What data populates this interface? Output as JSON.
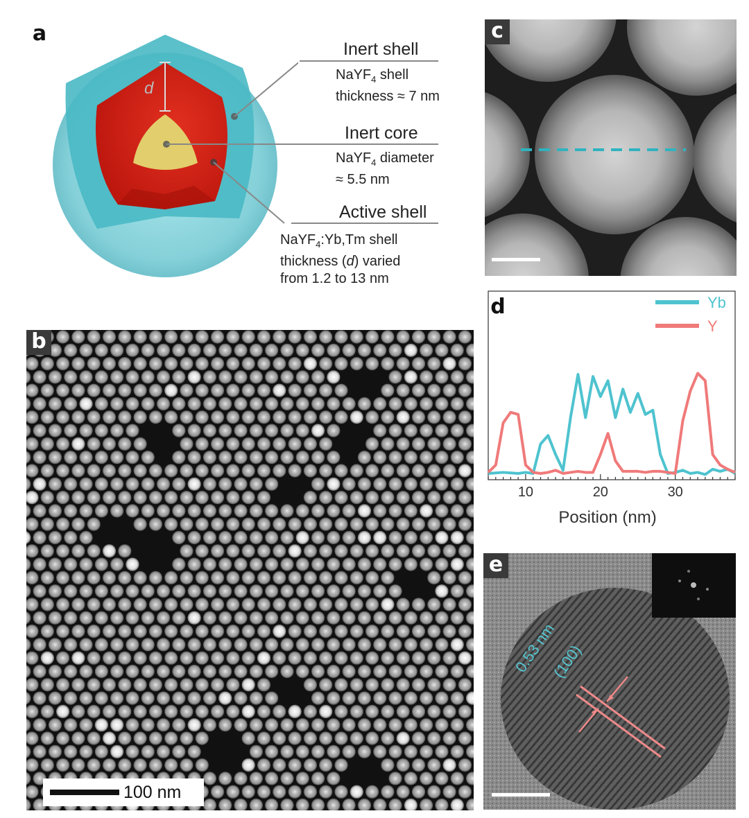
{
  "panels": {
    "a": "a",
    "b": "b",
    "c": "c",
    "d": "d",
    "e": "e"
  },
  "panel_a": {
    "d_symbol": "d",
    "inert_shell": {
      "title": "Inert shell",
      "line1_pre": "NaYF",
      "sub": "4",
      "line1_post": " shell",
      "line2": "thickness ≈ 7 nm"
    },
    "inert_core": {
      "title": "Inert core",
      "line1_pre": "NaYF",
      "sub": "4",
      "line1_post": " diameter",
      "line2": "≈ 5.5 nm"
    },
    "active_shell": {
      "title": "Active shell",
      "line1_pre": "NaYF",
      "sub": "4",
      "line1_post": ":Yb,Tm shell",
      "line2_pre": "thickness (",
      "line2_var": "d",
      "line2_post": ") varied",
      "line3": "from 1.2 to 13 nm"
    }
  },
  "panel_b": {
    "scale_label": "100 nm"
  },
  "panel_e": {
    "spacing_label": "0.53 nm",
    "plane_label": "(100)"
  },
  "colors": {
    "yb": "#4ec3cf",
    "y": "#f07a7a",
    "shell_cyan": "#7fd3dc",
    "active_red": "#cc1c12",
    "core_yellow": "#e0cd6a"
  },
  "chart_data": {
    "type": "line",
    "xlabel": "Position (nm)",
    "ylabel": "",
    "xlim": [
      5,
      38
    ],
    "ylim": [
      0,
      1
    ],
    "xticks": [
      10,
      20,
      30
    ],
    "grid": false,
    "legend": "top-right",
    "series": [
      {
        "name": "Yb",
        "color": "#4ec3cf",
        "x": [
          5,
          7,
          9,
          10,
          11,
          12,
          13,
          14,
          15,
          16,
          17,
          18,
          19,
          20,
          21,
          22,
          23,
          24,
          25,
          26,
          27,
          28,
          29,
          30,
          31,
          32,
          33,
          34,
          35,
          36,
          37,
          38
        ],
        "y": [
          0.02,
          0.03,
          0.02,
          0.03,
          0.02,
          0.3,
          0.38,
          0.2,
          0.05,
          0.55,
          0.96,
          0.55,
          0.94,
          0.75,
          0.9,
          0.55,
          0.82,
          0.6,
          0.78,
          0.58,
          0.62,
          0.2,
          0.02,
          0.03,
          0.05,
          0.02,
          0.03,
          0.01,
          0.06,
          0.04,
          0.06,
          0.02
        ]
      },
      {
        "name": "Y",
        "color": "#f07a7a",
        "x": [
          5,
          6,
          7,
          8,
          9,
          10,
          11,
          12,
          13,
          14,
          15,
          16,
          17,
          18,
          19,
          20,
          21,
          22,
          23,
          24,
          25,
          26,
          27,
          28,
          29,
          30,
          31,
          32,
          33,
          34,
          35,
          36,
          37,
          38
        ],
        "y": [
          0.03,
          0.1,
          0.5,
          0.6,
          0.58,
          0.1,
          0.03,
          0.02,
          0.03,
          0.05,
          0.02,
          0.03,
          0.04,
          0.03,
          0.03,
          0.2,
          0.4,
          0.14,
          0.04,
          0.04,
          0.04,
          0.03,
          0.04,
          0.04,
          0.03,
          0.02,
          0.52,
          0.8,
          0.97,
          0.9,
          0.2,
          0.1,
          0.06,
          0.03
        ]
      }
    ]
  }
}
